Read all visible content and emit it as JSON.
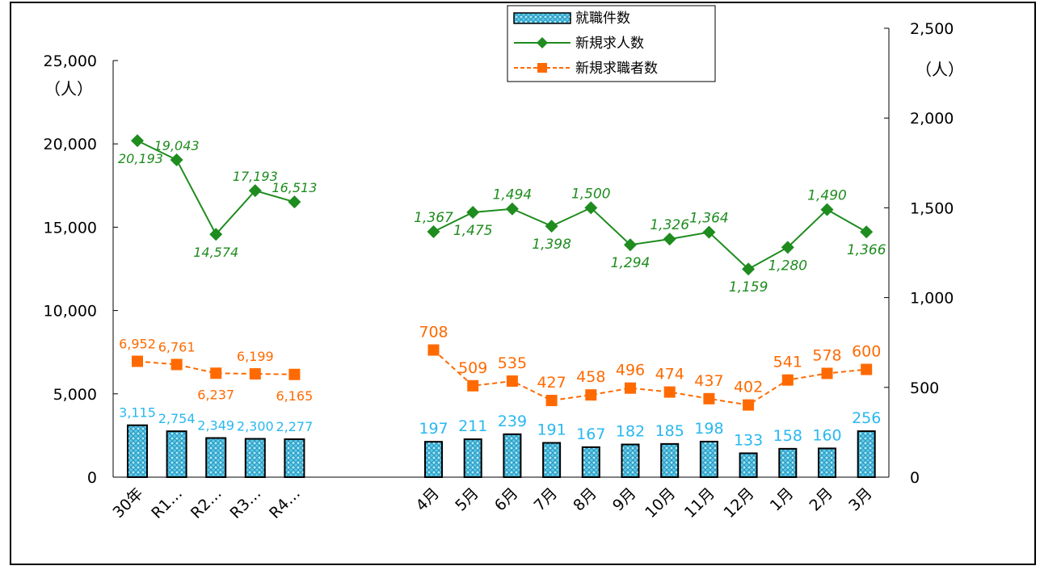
{
  "legend": {
    "items": [
      {
        "label": "就職件数",
        "kind": "bar"
      },
      {
        "label": "新規求人数",
        "kind": "line-diamond"
      },
      {
        "label": "新規求職者数",
        "kind": "line-square-dashed"
      }
    ]
  },
  "axes": {
    "left": {
      "unit": "（人）",
      "ticks": [
        "25,000",
        "20,000",
        "15,000",
        "10,000",
        "5,000",
        "0"
      ]
    },
    "right": {
      "unit": "（人）",
      "ticks": [
        "2,500",
        "2,000",
        "1,500",
        "1,000",
        "500",
        "0"
      ]
    }
  },
  "colors": {
    "bar_fill": "#5bc8e8",
    "bar_stroke": "#000000",
    "line_openings": "#1e8c1e",
    "line_seekers": "#ff6a00",
    "label_placements": "#29b8f0"
  },
  "chart_data": [
    {
      "type": "bar+line",
      "axis": "left",
      "ylim": [
        0,
        25000
      ],
      "categories": [
        "30年",
        "R1…",
        "R2…",
        "R3…",
        "R4…"
      ],
      "series": [
        {
          "name": "就職件数",
          "type": "bar",
          "values": [
            3115,
            2754,
            2349,
            2300,
            2277
          ],
          "labels": [
            "3,115",
            "2,754",
            "2,349",
            "2,300",
            "2,277"
          ]
        },
        {
          "name": "新規求人数",
          "type": "line",
          "values": [
            20193,
            19043,
            14574,
            17193,
            16513
          ],
          "labels": [
            "20,193",
            "19,043",
            "14,574",
            "17,193",
            "16,513"
          ]
        },
        {
          "name": "新規求職者数",
          "type": "line-dashed",
          "values": [
            6952,
            6761,
            6237,
            6199,
            6165
          ],
          "labels": [
            "6,952",
            "6,761",
            "6,237",
            "6,199",
            "6,165"
          ]
        }
      ]
    },
    {
      "type": "bar+line",
      "axis": "right",
      "ylim": [
        0,
        2500
      ],
      "categories": [
        "4月",
        "5月",
        "6月",
        "7月",
        "8月",
        "9月",
        "10月",
        "11月",
        "12月",
        "1月",
        "2月",
        "3月"
      ],
      "series": [
        {
          "name": "就職件数",
          "type": "bar",
          "values": [
            197,
            211,
            239,
            191,
            167,
            182,
            185,
            198,
            133,
            158,
            160,
            256
          ],
          "labels": [
            "197",
            "211",
            "239",
            "191",
            "167",
            "182",
            "185",
            "198",
            "133",
            "158",
            "160",
            "256"
          ]
        },
        {
          "name": "新規求人数",
          "type": "line",
          "values": [
            1367,
            1475,
            1494,
            1398,
            1500,
            1294,
            1326,
            1364,
            1159,
            1280,
            1490,
            1366
          ],
          "labels": [
            "1,367",
            "1,475",
            "1,494",
            "1,398",
            "1,500",
            "1,294",
            "1,326",
            "1,364",
            "1,159",
            "1,280",
            "1,490",
            "1,366"
          ]
        },
        {
          "name": "新規求職者数",
          "type": "line-dashed",
          "values": [
            708,
            509,
            535,
            427,
            458,
            496,
            474,
            437,
            402,
            541,
            578,
            600
          ],
          "labels": [
            "708",
            "509",
            "535",
            "427",
            "458",
            "496",
            "474",
            "437",
            "402",
            "541",
            "578",
            "600"
          ]
        }
      ]
    }
  ]
}
